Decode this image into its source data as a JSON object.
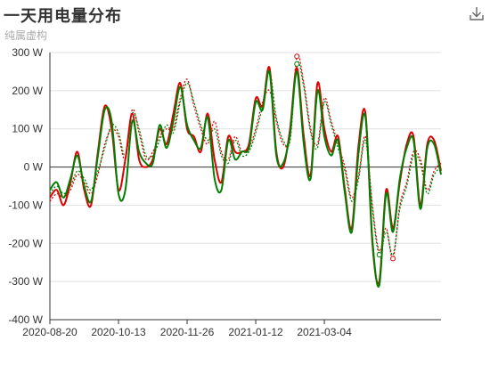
{
  "header": {
    "title": "一天用电量分布",
    "subtitle": "纯属虚构"
  },
  "toolbar": {
    "download_icon": "download-icon"
  },
  "colors": {
    "red_series": "#e00000",
    "green_series": "#008000",
    "grid": "#e0e0e0",
    "axis": "#333333"
  },
  "chart_data": {
    "type": "line",
    "title": "一天用电量分布",
    "subtitle": "纯属虚构",
    "ylim": [
      -400,
      300
    ],
    "y_ticks": [
      "300 W",
      "200 W",
      "100 W",
      "0 W",
      "-100 W",
      "-200 W",
      "-300 W",
      "-400 W"
    ],
    "x_ticks": [
      "2020-08-20",
      "2020-10-13",
      "2020-11-26",
      "2021-01-12",
      "2021-03-04"
    ],
    "grid": true,
    "x_tick_index": [
      0,
      10,
      20,
      30,
      40
    ],
    "series": [
      {
        "color": "#e00000",
        "style": "solid",
        "values": [
          -80,
          -60,
          -100,
          -40,
          40,
          -60,
          -100,
          40,
          160,
          100,
          -60,
          20,
          140,
          20,
          0,
          20,
          100,
          60,
          140,
          220,
          100,
          80,
          40,
          140,
          20,
          -40,
          80,
          40,
          40,
          60,
          180,
          160,
          260,
          40,
          0,
          100,
          260,
          80,
          -20,
          220,
          100,
          40,
          80,
          -60,
          -160,
          60,
          140,
          -200,
          -300,
          -60,
          -160,
          -40,
          60,
          80,
          -100,
          60,
          70,
          -10
        ]
      },
      {
        "color": "#008000",
        "style": "solid",
        "values": [
          -60,
          -40,
          -80,
          -30,
          30,
          -50,
          -90,
          30,
          150,
          120,
          -70,
          -60,
          120,
          40,
          10,
          10,
          110,
          50,
          120,
          210,
          110,
          70,
          50,
          130,
          -30,
          -60,
          70,
          20,
          40,
          50,
          170,
          150,
          250,
          30,
          10,
          90,
          250,
          60,
          -30,
          200,
          80,
          30,
          70,
          -70,
          -170,
          40,
          130,
          -190,
          -310,
          -70,
          -170,
          -30,
          50,
          70,
          -110,
          50,
          60,
          -20
        ]
      },
      {
        "color": "#e00000",
        "style": "dotted",
        "values": [
          -90,
          -70,
          -80,
          -60,
          -20,
          -40,
          -70,
          -20,
          60,
          100,
          80,
          20,
          150,
          90,
          20,
          40,
          80,
          100,
          100,
          180,
          230,
          160,
          100,
          60,
          120,
          40,
          20,
          80,
          40,
          50,
          100,
          170,
          200,
          120,
          60,
          80,
          290,
          220,
          100,
          60,
          180,
          120,
          60,
          0,
          -80,
          -20,
          80,
          -100,
          -220,
          -160,
          -240,
          -100,
          -40,
          40,
          20,
          -60,
          -10,
          10
        ]
      },
      {
        "color": "#008000",
        "style": "dotted",
        "values": [
          -70,
          -50,
          -70,
          -50,
          -10,
          -30,
          -60,
          -10,
          50,
          110,
          90,
          30,
          140,
          100,
          30,
          30,
          70,
          110,
          90,
          170,
          220,
          170,
          110,
          70,
          100,
          30,
          10,
          70,
          30,
          40,
          90,
          160,
          250,
          130,
          70,
          70,
          270,
          210,
          90,
          50,
          170,
          110,
          50,
          -10,
          -90,
          -30,
          70,
          -110,
          -230,
          -170,
          -230,
          -110,
          -50,
          30,
          10,
          -70,
          -20,
          0
        ]
      }
    ]
  }
}
